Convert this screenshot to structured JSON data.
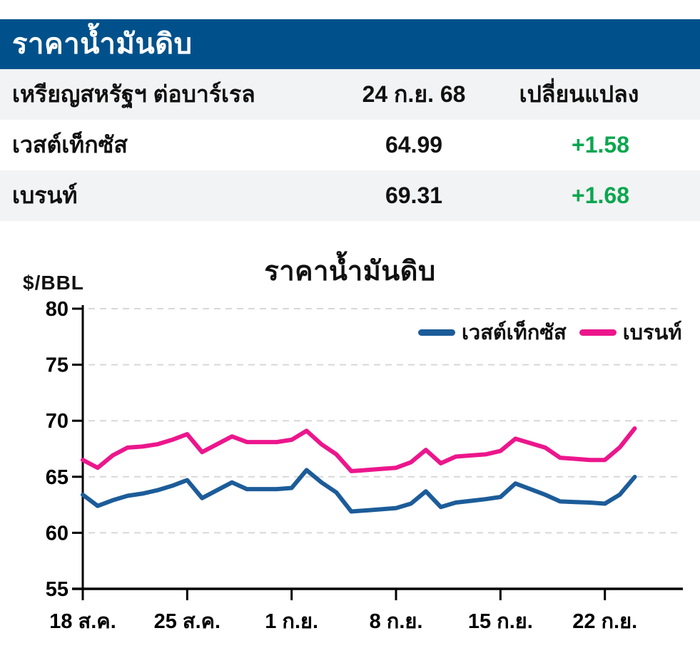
{
  "table": {
    "title": "ราคาน้ำมันดิบ",
    "header": {
      "unit": "เหรียญสหรัฐฯ ต่อบาร์เรล",
      "date": "24 ก.ย. 68",
      "change": "เปลี่ยนแปลง"
    },
    "rows": [
      {
        "name": "เวสต์เท็กซัส",
        "price": "64.99",
        "change": "+1.58"
      },
      {
        "name": "เบรนท์",
        "price": "69.31",
        "change": "+1.68"
      }
    ],
    "colors": {
      "banner": "#00518b",
      "change_positive": "#0aa64f"
    }
  },
  "chart_data": {
    "type": "line",
    "title": "ราคาน้ำมันดิบ",
    "ylabel": "$/BBL",
    "ylim": [
      55,
      80
    ],
    "yticks": [
      80,
      75,
      70,
      65,
      60,
      55
    ],
    "grid": "horizontal-dashed",
    "legend_position": "top-right",
    "x_tick_labels": [
      "18 ส.ค.",
      "25 ส.ค.",
      "1 ก.ย.",
      "8 ก.ย.",
      "15 ก.ย.",
      "22 ก.ย."
    ],
    "x_ticks": [
      {
        "day": 0,
        "label": "18 ส.ค."
      },
      {
        "day": 7,
        "label": "25 ส.ค."
      },
      {
        "day": 14,
        "label": "1 ก.ย."
      },
      {
        "day": 21,
        "label": "8 ก.ย."
      },
      {
        "day": 28,
        "label": "15 ก.ย."
      },
      {
        "day": 35,
        "label": "22 ก.ย."
      }
    ],
    "x": [
      "18 ส.ค.",
      "19 ส.ค.",
      "20 ส.ค.",
      "21 ส.ค.",
      "22 ส.ค.",
      "23 ส.ค.",
      "24 ส.ค.",
      "25 ส.ค.",
      "26 ส.ค.",
      "27 ส.ค.",
      "28 ส.ค.",
      "29 ส.ค.",
      "30 ส.ค.",
      "31 ส.ค.",
      "1 ก.ย.",
      "2 ก.ย.",
      "3 ก.ย.",
      "4 ก.ย.",
      "5 ก.ย.",
      "6 ก.ย.",
      "7 ก.ย.",
      "8 ก.ย.",
      "9 ก.ย.",
      "10 ก.ย.",
      "11 ก.ย.",
      "12 ก.ย.",
      "13 ก.ย.",
      "14 ก.ย.",
      "15 ก.ย.",
      "16 ก.ย.",
      "17 ก.ย.",
      "18 ก.ย.",
      "19 ก.ย.",
      "20 ก.ย.",
      "21 ก.ย.",
      "22 ก.ย.",
      "23 ก.ย.",
      "24 ก.ย."
    ],
    "series": [
      {
        "id": "wti",
        "name": "เวสต์เท็กซัส",
        "color": "#1c5c99",
        "values": [
          63.4,
          62.4,
          62.9,
          63.3,
          63.5,
          63.8,
          64.2,
          64.7,
          63.1,
          63.8,
          64.5,
          63.9,
          63.9,
          63.9,
          64.0,
          65.6,
          64.5,
          63.6,
          61.9,
          62.0,
          62.1,
          62.2,
          62.6,
          63.7,
          62.3,
          62.7,
          62.85,
          63.0,
          63.2,
          64.4,
          63.9,
          63.4,
          62.8,
          62.75,
          62.7,
          62.6,
          63.41,
          64.99
        ]
      },
      {
        "id": "brent",
        "name": "เบรนท์",
        "color": "#ec168c",
        "values": [
          66.5,
          65.8,
          66.9,
          67.6,
          67.7,
          67.9,
          68.3,
          68.8,
          67.2,
          67.9,
          68.6,
          68.1,
          68.1,
          68.1,
          68.3,
          69.1,
          67.9,
          67.0,
          65.5,
          65.6,
          65.7,
          65.8,
          66.3,
          67.4,
          66.2,
          66.8,
          66.9,
          67.0,
          67.3,
          68.4,
          68.0,
          67.6,
          66.7,
          66.6,
          66.5,
          66.5,
          67.63,
          69.31
        ]
      }
    ]
  }
}
